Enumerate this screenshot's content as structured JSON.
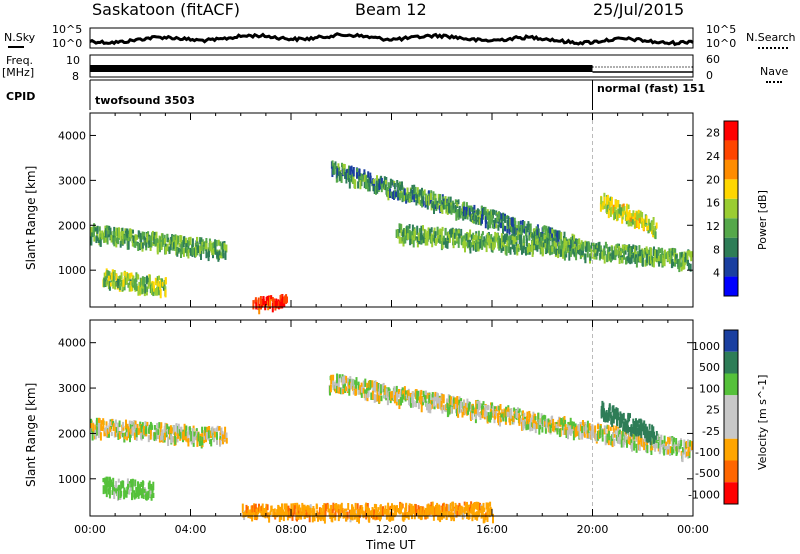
{
  "header": {
    "site": "Saskatoon (fitACF)",
    "beam": "Beam 12",
    "date": "25/Jul/2015"
  },
  "left_labels": {
    "nsky": "N.Sky",
    "freq": "Freq.",
    "freq_unit": "[MHz]",
    "cpid": "CPID"
  },
  "right_labels": {
    "nsearch": "N.Search",
    "nave": "Nave"
  },
  "status_axes": {
    "nsky_ticks": [
      "10^5",
      "10^0"
    ],
    "nsearch_ticks": [
      "10^5",
      "10^0"
    ],
    "freq_ticks": [
      "10",
      "8"
    ],
    "nave_ticks": [
      "60",
      "0"
    ]
  },
  "cpid_segments": [
    {
      "label": "twofsound 3503",
      "start_hour": 0,
      "end_hour": 20
    },
    {
      "label": "normal (fast) 151",
      "start_hour": 20,
      "end_hour": 24
    }
  ],
  "colors": {
    "power": [
      "#0000ff",
      "#1a3fa0",
      "#2e7d57",
      "#55a84a",
      "#9acd32",
      "#ffd700",
      "#ff8c00",
      "#ff4500",
      "#ff0000"
    ],
    "velocity": [
      "#1a3fa0",
      "#2e7d57",
      "#55c13a",
      "#c8c8c8",
      "#c8c8c8",
      "#ffa500",
      "#ff6600",
      "#ff0000"
    ],
    "ground_scatter": "#c0c0c0"
  },
  "chart_data": [
    {
      "type": "heatmap",
      "title": "",
      "xlabel": "",
      "ylabel": "Slant Range [km]",
      "xlim": [
        0,
        24
      ],
      "ylim": [
        180,
        4500
      ],
      "xticks": [
        "00:00",
        "04:00",
        "08:00",
        "12:00",
        "16:00",
        "20:00",
        "00:00"
      ],
      "ytick_values": [
        1000,
        2000,
        3000,
        4000
      ],
      "colorbar": {
        "label": "Power [dB]",
        "ticks": [
          4,
          8,
          12,
          16,
          20,
          24,
          28
        ],
        "range": [
          0,
          30
        ]
      },
      "scatter_bands_estimated": [
        {
          "start_hour": 0.0,
          "end_hour": 5.4,
          "range_start_km": 1900,
          "range_end_km": 1500,
          "power_db": 12
        },
        {
          "start_hour": 0.5,
          "end_hour": 3.0,
          "range_start_km": 900,
          "range_end_km": 700,
          "power_db": 14
        },
        {
          "start_hour": 6.5,
          "end_hour": 7.8,
          "range_start_km": 250,
          "range_end_km": 330,
          "power_db": 28
        },
        {
          "start_hour": 9.6,
          "end_hour": 19.5,
          "range_start_km": 3300,
          "range_end_km": 1600,
          "power_db": 10
        },
        {
          "start_hour": 12.2,
          "end_hour": 23.9,
          "range_start_km": 1900,
          "range_end_km": 1300,
          "power_db": 12
        },
        {
          "start_hour": 20.3,
          "end_hour": 22.5,
          "range_start_km": 2600,
          "range_end_km": 2000,
          "power_db": 16
        }
      ]
    },
    {
      "type": "heatmap",
      "title": "",
      "xlabel": "Time UT",
      "ylabel": "Slant Range [km]",
      "xlim": [
        0,
        24
      ],
      "ylim": [
        180,
        4500
      ],
      "xticks": [
        "00:00",
        "04:00",
        "08:00",
        "12:00",
        "16:00",
        "20:00",
        "00:00"
      ],
      "ytick_values": [
        1000,
        2000,
        3000,
        4000
      ],
      "colorbar": {
        "label": "Velocity [m s^-1]",
        "ticks": [
          1000,
          500,
          100,
          25,
          -25,
          -100,
          -500,
          -1000
        ]
      },
      "scatter_bands_estimated": [
        {
          "start_hour": 0.0,
          "end_hour": 5.4,
          "range_start_km": 2200,
          "range_end_km": 2000,
          "velocity_ms": 0
        },
        {
          "start_hour": 0.5,
          "end_hour": 2.5,
          "range_start_km": 900,
          "range_end_km": 800,
          "velocity_ms": 150
        },
        {
          "start_hour": 6.0,
          "end_hour": 16.0,
          "range_start_km": 300,
          "range_end_km": 350,
          "velocity_ms": -200
        },
        {
          "start_hour": 9.5,
          "end_hour": 23.9,
          "range_start_km": 3200,
          "range_end_km": 1700,
          "velocity_ms": 0
        },
        {
          "start_hour": 20.3,
          "end_hour": 22.5,
          "range_start_km": 2600,
          "range_end_km": 2000,
          "velocity_ms": 500
        }
      ]
    }
  ]
}
